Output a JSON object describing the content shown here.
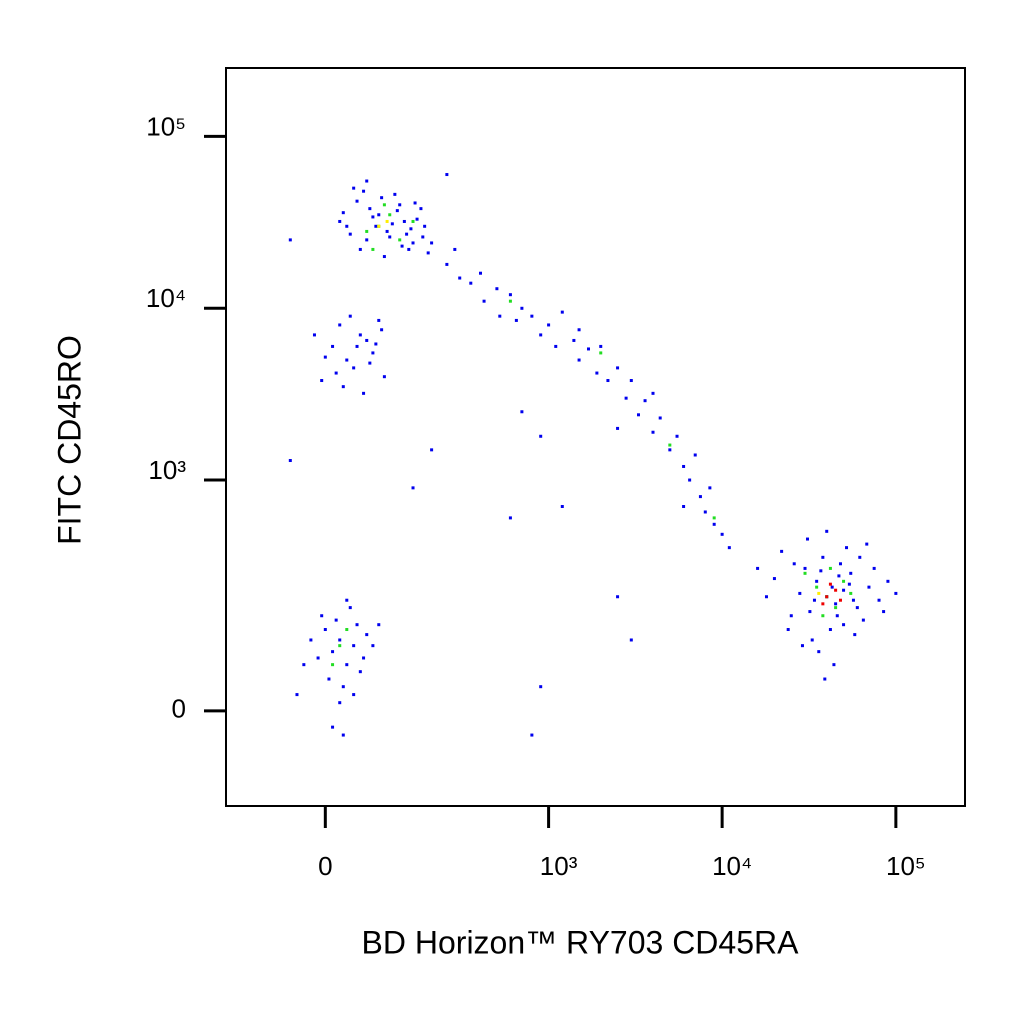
{
  "chart_data": {
    "type": "scatter",
    "xlabel": "BD Horizon™ RY703 CD45RA",
    "ylabel": "FITC CD45RO",
    "scale": "biexponential",
    "x_linear_width": 104,
    "y_linear_width": 91,
    "xlim": [
      -180,
      250000
    ],
    "ylim": [
      -150,
      250000
    ],
    "xticks": [
      0,
      {
        "value": 1000,
        "label": "10³"
      },
      {
        "value": 10000,
        "label": "10⁴"
      },
      {
        "value": 100000,
        "label": "10⁵"
      }
    ],
    "yticks": [
      0,
      {
        "value": 1000,
        "label": "10³"
      },
      {
        "value": 10000,
        "label": "10⁴"
      },
      {
        "value": 100000,
        "label": "10⁵"
      }
    ],
    "series": [
      {
        "color": "#0000ee",
        "x": [
          30,
          45,
          60,
          80,
          95,
          110,
          130,
          150,
          170,
          190,
          25,
          55,
          75,
          100,
          120,
          140,
          160,
          35,
          65,
          85,
          105,
          125,
          145,
          175,
          40,
          70,
          90,
          115,
          135,
          155,
          50,
          20,
          180,
          200,
          60,
          -50,
          250,
          250,
          300,
          280,
          350,
          400,
          420,
          500,
          520,
          600,
          650,
          700,
          800,
          900,
          1000,
          1100,
          1200,
          1400,
          1500,
          1700,
          1900,
          2000,
          2200,
          2500,
          2800,
          3000,
          3300,
          3600,
          4000,
          4400,
          5000,
          5500,
          6000,
          6500,
          7000,
          7500,
          8000,
          8500,
          9000,
          10000,
          11000,
          6000,
          4000,
          2500,
          1500,
          40000,
          35000,
          45000,
          30000,
          50000,
          25000,
          55000,
          42000,
          38000,
          60000,
          20000,
          70000,
          33000,
          48000,
          28000,
          65000,
          22000,
          80000,
          36000,
          52000,
          18000,
          90000,
          44000,
          31000,
          58000,
          26000,
          75000,
          40000,
          46000,
          34000,
          100000,
          16000,
          62000,
          29000,
          54000,
          39000,
          47000,
          24000,
          85000,
          68000,
          32000,
          43000,
          57000,
          37000,
          50000,
          10,
          30,
          50,
          70,
          90,
          20,
          40,
          60,
          80,
          0,
          25,
          45,
          65,
          -15,
          35,
          55,
          75,
          15,
          85,
          -5,
          10,
          20,
          30,
          0,
          40,
          -10,
          15,
          50,
          25,
          -20,
          35,
          5,
          60,
          -30,
          45,
          20,
          70,
          -40,
          10,
          30,
          55,
          -5,
          80,
          25,
          40,
          -50,
          700,
          900,
          1200,
          2500,
          3000,
          900,
          800,
          600,
          150,
          200
        ],
        "y": [
          30000,
          42000,
          25000,
          35000,
          28000,
          46000,
          32000,
          24000,
          38000,
          21000,
          36000,
          48000,
          30000,
          26000,
          40000,
          22000,
          33000,
          27000,
          38000,
          44000,
          31000,
          23000,
          29000,
          26000,
          50000,
          34000,
          20000,
          37000,
          27000,
          41000,
          22000,
          32000,
          30000,
          24000,
          55000,
          25000,
          60000,
          18000,
          15000,
          22000,
          14000,
          16000,
          11000,
          13000,
          9000,
          12000,
          8500,
          10000,
          9000,
          7000,
          8000,
          6000,
          9500,
          6500,
          5000,
          5800,
          4200,
          6000,
          3800,
          4500,
          3000,
          3800,
          2400,
          2900,
          1900,
          2300,
          1500,
          1800,
          1200,
          1000,
          1400,
          800,
          650,
          900,
          550,
          480,
          400,
          700,
          3200,
          2000,
          7500,
          200,
          250,
          180,
          300,
          220,
          150,
          280,
          120,
          350,
          170,
          260,
          230,
          100,
          320,
          210,
          140,
          380,
          190,
          80,
          400,
          200,
          250,
          60,
          450,
          110,
          320,
          300,
          500,
          150,
          190,
          210,
          300,
          350,
          90,
          240,
          40,
          270,
          120,
          160,
          420,
          160,
          230,
          190,
          290,
          130,
          6000,
          5000,
          7000,
          5500,
          4000,
          8000,
          4500,
          6500,
          8500,
          5200,
          3500,
          6000,
          4800,
          7000,
          9000,
          3200,
          6200,
          4200,
          7500,
          3800,
          80,
          100,
          60,
          120,
          90,
          70,
          140,
          50,
          30,
          100,
          170,
          40,
          110,
          60,
          130,
          10,
          90,
          20,
          -20,
          190,
          70,
          150,
          130,
          -30,
          20,
          1300,
          2500,
          1800,
          700,
          200,
          100,
          30,
          -30,
          600,
          900,
          1500
        ]
      },
      {
        "color": "#22dd22",
        "x": [
          80,
          100,
          60,
          120,
          90,
          150,
          70,
          600,
          2000,
          5000,
          9000,
          40000,
          35000,
          45000,
          50000,
          30000,
          38000,
          55000,
          42000,
          20,
          30,
          10
        ],
        "y": [
          30000,
          35000,
          28000,
          25000,
          40000,
          32000,
          22000,
          11000,
          5500,
          1600,
          600,
          200,
          230,
          170,
          250,
          280,
          150,
          210,
          300,
          90,
          120,
          60
        ]
      },
      {
        "color": "#ffee00",
        "x": [
          80,
          95,
          36000
        ],
        "y": [
          30000,
          32000,
          210
        ]
      },
      {
        "color": "#ee0000",
        "x": [
          40000,
          45000,
          38000,
          48000,
          42000
        ],
        "y": [
          200,
          220,
          180,
          190,
          240
        ]
      }
    ]
  }
}
